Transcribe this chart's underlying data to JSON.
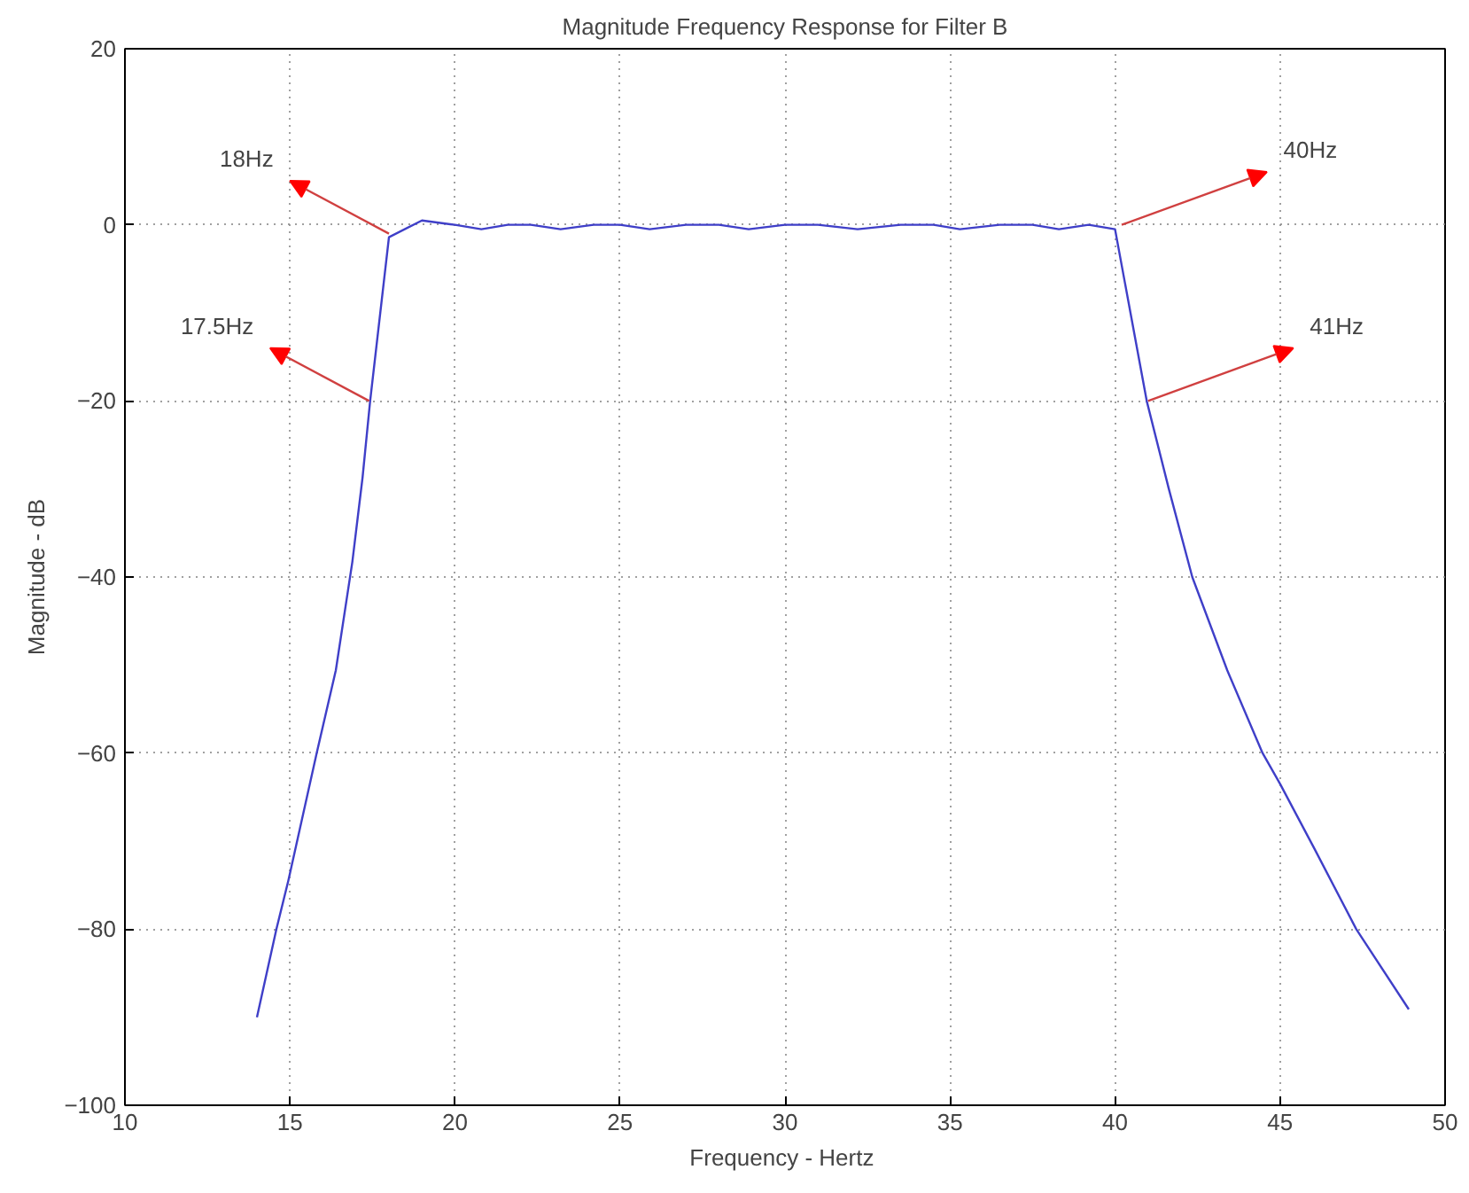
{
  "chart_data": {
    "type": "line",
    "title": "Magnitude Frequency Response for Filter B",
    "xlabel": "Frequency -  Hertz",
    "ylabel": "Magnitude - dB",
    "x": [
      14.0,
      14.59,
      14.95,
      15.81,
      16.39,
      16.89,
      17.2,
      17.43,
      18.0,
      19.0,
      20.0,
      20.8,
      21.6,
      22.3,
      23.2,
      24.2,
      25.0,
      25.9,
      27.0,
      28.0,
      28.9,
      30.0,
      31.0,
      32.2,
      33.5,
      34.5,
      35.3,
      36.5,
      37.5,
      38.3,
      39.2,
      40.0,
      40.96,
      41.63,
      42.34,
      43.4,
      44.47,
      45.0,
      46.06,
      47.31,
      48.9
    ],
    "series": [
      {
        "color": "#3f3fc8",
        "values": [
          -90,
          -80,
          -74.5,
          -60,
          -50.6,
          -38.3,
          -28.7,
          -20,
          -1.4,
          0.5,
          0,
          -0.5,
          0,
          0,
          -0.5,
          0,
          0,
          -0.5,
          0,
          0,
          -0.5,
          0,
          0,
          -0.5,
          0,
          0,
          -0.5,
          0,
          0,
          -0.5,
          0,
          -0.5,
          -20,
          -30,
          -40,
          -50.6,
          -60,
          -63.5,
          -71,
          -80,
          -89.1
        ]
      }
    ],
    "xlim": [
      10,
      50
    ],
    "ylim": [
      -100,
      20
    ],
    "xticks": [
      10,
      15,
      20,
      25,
      30,
      35,
      40,
      45,
      50
    ],
    "yticks": [
      -100,
      -80,
      -60,
      -40,
      -20,
      0,
      20
    ],
    "grid": true,
    "annotations": [
      {
        "text": "18Hz",
        "x": 18,
        "y": -1
      },
      {
        "text": "17.5Hz",
        "x": 17.4,
        "y": -20
      },
      {
        "text": "40Hz",
        "x": 40.2,
        "y": 0
      },
      {
        "text": "41Hz",
        "x": 41,
        "y": -20
      }
    ]
  }
}
